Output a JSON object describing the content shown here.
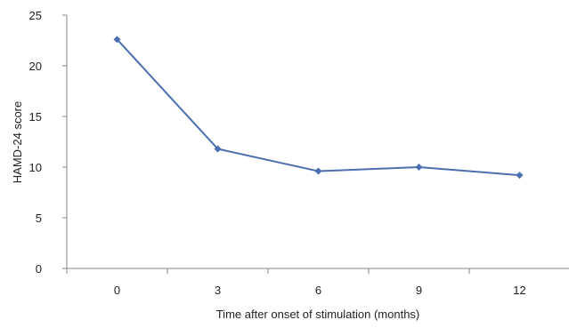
{
  "chart_data": {
    "type": "line",
    "title": "",
    "xlabel": "Time after onset of stimulation (months)",
    "ylabel": "HAMD-24 score",
    "categories": [
      "0",
      "3",
      "6",
      "9",
      "12"
    ],
    "series": [
      {
        "values": [
          22.6,
          11.8,
          9.6,
          10.0,
          9.2
        ],
        "color": "#4a6fb0",
        "marker": "diamond"
      }
    ],
    "ylim": [
      0,
      25
    ],
    "yticks": [
      0,
      5,
      10,
      15,
      20,
      25
    ],
    "grid": false,
    "legend": "none"
  }
}
